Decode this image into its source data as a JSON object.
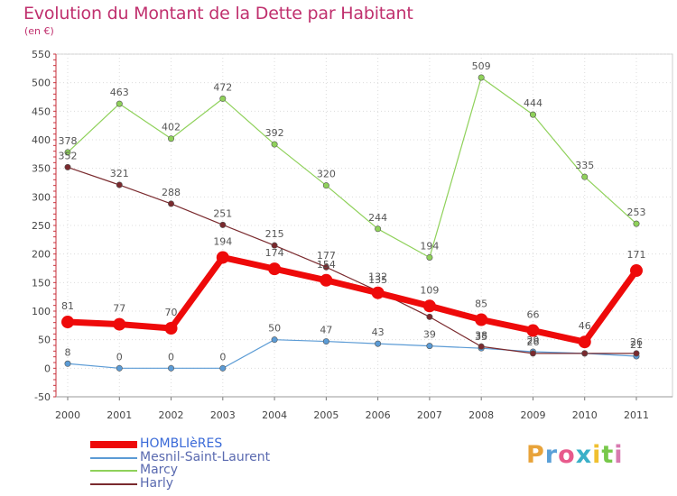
{
  "title": "Evolution du Montant de la Dette par Habitant",
  "subtitle": "(en €)",
  "logo_text": "Proxiti",
  "logo_colors": [
    "#e8a33a",
    "#5aa0d8",
    "#e85a8c",
    "#3ab0c8",
    "#f0c030",
    "#77c84a",
    "#d87ab0"
  ],
  "chart_data": {
    "type": "line",
    "x": [
      "2000",
      "2001",
      "2002",
      "2003",
      "2004",
      "2005",
      "2006",
      "2007",
      "2008",
      "2009",
      "2010",
      "2011"
    ],
    "ylim": [
      -50,
      550
    ],
    "yticks": [
      "-50",
      "0",
      "50",
      "100",
      "150",
      "200",
      "250",
      "300",
      "350",
      "400",
      "450",
      "500",
      "550"
    ],
    "grid": true,
    "legend_position": "bottom-left",
    "series": [
      {
        "name": "Mesnil-Saint-Laurent",
        "color": "#5b9bd5",
        "values": [
          8,
          0,
          0,
          0,
          50,
          47,
          43,
          39,
          35,
          29,
          26,
          21
        ],
        "labels": [
          "8",
          "0",
          "0",
          "0",
          "50",
          "47",
          "43",
          "39",
          "35",
          "29",
          "26",
          "21"
        ]
      },
      {
        "name": "Marcy",
        "color": "#8fd15a",
        "values": [
          378,
          463,
          402,
          472,
          392,
          320,
          244,
          194,
          509,
          444,
          335,
          253
        ],
        "labels": [
          "378",
          "463",
          "402",
          "472",
          "392",
          "320",
          "244",
          "194",
          "509",
          "444",
          "335",
          "253"
        ]
      },
      {
        "name": "Harly",
        "color": "#7a2a2e",
        "values": [
          352,
          321,
          288,
          251,
          215,
          177,
          135,
          90,
          38,
          26,
          26,
          26
        ],
        "labels": [
          "352",
          "321",
          "288",
          "251",
          "215",
          "177",
          "135",
          "90",
          "38",
          "26",
          "26",
          "26"
        ]
      },
      {
        "name": "HOMBLIèRES",
        "color": "#ee0a0a",
        "values": [
          81,
          77,
          70,
          194,
          174,
          154,
          132,
          109,
          85,
          66,
          46,
          171
        ],
        "labels": [
          "81",
          "77",
          "70",
          "194",
          "174",
          "154",
          "132",
          "109",
          "85",
          "66",
          "46",
          "171"
        ]
      }
    ],
    "legend_order": [
      "HOMBLIèRES",
      "Mesnil-Saint-Laurent",
      "Marcy",
      "Harly"
    ]
  }
}
